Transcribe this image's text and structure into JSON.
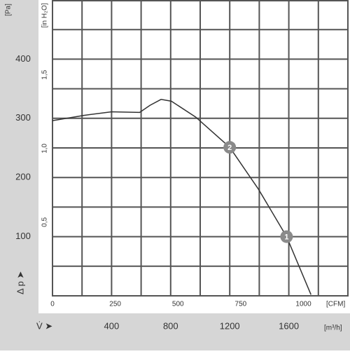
{
  "chart_data": {
    "type": "line",
    "x_label": "V̇ ➤",
    "x_unit": "[m³/h]",
    "y_label": "Δ p ➤",
    "y_unit": "[Pa]",
    "x2_unit": "[CFM]",
    "y2_unit": "[in H₂O]",
    "xlim": [
      0,
      2000
    ],
    "xticks": [
      400,
      800,
      1200,
      1600
    ],
    "xgrid": [
      200,
      400,
      600,
      800,
      1000,
      1200,
      1400,
      1600,
      1800
    ],
    "ylim": [
      0,
      500
    ],
    "yticks": [
      100,
      200,
      300,
      400
    ],
    "ygrid": [
      50,
      100,
      150,
      200,
      250,
      300,
      350,
      400,
      450
    ],
    "x2lim": [
      0,
      1177
    ],
    "x2ticks": [
      0,
      250,
      500,
      750,
      1000
    ],
    "y2lim": [
      0,
      2.008
    ],
    "y2ticks": [
      {
        "value": 0.5,
        "label": "0,5"
      },
      {
        "value": 1.0,
        "label": "1,0"
      },
      {
        "value": 1.5,
        "label": "1,5"
      }
    ],
    "grid": true,
    "series": [
      {
        "color": "#333333",
        "x": [
          0,
          212,
          400,
          590,
          660,
          735,
          805,
          970,
          1200,
          1395,
          1585,
          1750
        ],
        "values": [
          296,
          305,
          311,
          310,
          322,
          332,
          329,
          302,
          251,
          180,
          100,
          2
        ]
      }
    ],
    "points": [
      {
        "label": "2",
        "x": 1200,
        "y": 251
      },
      {
        "label": "1",
        "x": 1585,
        "y": 100
      }
    ]
  }
}
